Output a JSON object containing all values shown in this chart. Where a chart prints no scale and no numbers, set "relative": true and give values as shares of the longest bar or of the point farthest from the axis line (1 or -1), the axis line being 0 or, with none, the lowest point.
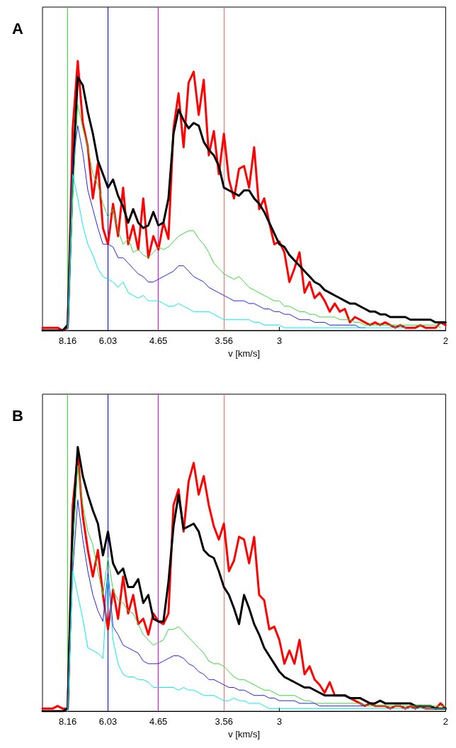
{
  "chart_data": [
    {
      "type": "line",
      "title": "A",
      "xlabel": "v [km/s]",
      "relative": true,
      "marker": "none",
      "grid": false,
      "ref_lines": [
        {
          "axis": "x",
          "value": "8.16",
          "color": "#33dd33"
        },
        {
          "axis": "x",
          "value": "6.03",
          "color": "#0000ff"
        },
        {
          "axis": "x",
          "value": "4.65",
          "color": "#ee00ee"
        },
        {
          "axis": "x",
          "value": "3.56",
          "color": "#ff6666"
        }
      ],
      "categories": [
        null,
        null,
        null,
        null,
        null,
        "8.16",
        null,
        null,
        null,
        null,
        null,
        null,
        null,
        "6.03",
        null,
        null,
        null,
        null,
        null,
        null,
        null,
        null,
        null,
        "4.65",
        null,
        null,
        null,
        null,
        null,
        null,
        null,
        null,
        null,
        null,
        null,
        null,
        "3.56",
        null,
        null,
        null,
        null,
        null,
        null,
        null,
        null,
        null,
        null,
        "3",
        null,
        null,
        null,
        null,
        null,
        null,
        null,
        null,
        null,
        null,
        null,
        null,
        null,
        null,
        null,
        null,
        null,
        null,
        null,
        null,
        null,
        null,
        null,
        null,
        null,
        null,
        null,
        null,
        null,
        null,
        null,
        null,
        "2"
      ],
      "series": [
        {
          "color": "#ff0000",
          "values": [
            0.01,
            0.01,
            0.01,
            0.01,
            0,
            0.01,
            0.75,
            1,
            0.77,
            0.68,
            0.49,
            0.62,
            0.38,
            0.32,
            0.47,
            0.35,
            0.53,
            0.32,
            0.39,
            0.3,
            0.49,
            0.27,
            0.35,
            0.3,
            0.4,
            0.34,
            0.75,
            0.88,
            0.68,
            0.92,
            0.96,
            0.8,
            0.93,
            0.65,
            0.74,
            0.58,
            0.73,
            0.56,
            0.49,
            0.6,
            0.61,
            0.53,
            0.68,
            0.45,
            0.49,
            0.4,
            0.32,
            0.33,
            0.29,
            0.18,
            0.23,
            0.29,
            0.14,
            0.18,
            0.12,
            0.14,
            0.11,
            0.07,
            0.1,
            0.07,
            0.08,
            0.03,
            0.05,
            0.04,
            0.03,
            0.02,
            0.03,
            0.02,
            0.03,
            0.02,
            0.01,
            0.02,
            0.01,
            0.01,
            0.01,
            0.02,
            0.01,
            0.01,
            0.01,
            0.03,
            0.02
          ]
        },
        {
          "color": "#000000",
          "values": [
            0,
            0,
            0,
            0,
            0,
            0.02,
            0.58,
            0.94,
            0.91,
            0.81,
            0.73,
            0.63,
            0.58,
            0.53,
            0.56,
            0.5,
            0.46,
            0.4,
            0.45,
            0.4,
            0.38,
            0.39,
            0.44,
            0.39,
            0.4,
            0.49,
            0.73,
            0.82,
            0.78,
            0.75,
            0.77,
            0.76,
            0.7,
            0.67,
            0.65,
            0.61,
            0.53,
            0.52,
            0.51,
            0.5,
            0.52,
            0.52,
            0.49,
            0.47,
            0.44,
            0.4,
            0.36,
            0.32,
            0.31,
            0.28,
            0.26,
            0.24,
            0.22,
            0.2,
            0.18,
            0.17,
            0.15,
            0.14,
            0.13,
            0.12,
            0.11,
            0.1,
            0.1,
            0.09,
            0.08,
            0.07,
            0.07,
            0.06,
            0.06,
            0.05,
            0.05,
            0.05,
            0.05,
            0.04,
            0.04,
            0.04,
            0.04,
            0.04,
            0.03,
            0.03,
            0.03
          ]
        },
        {
          "color": "#33dd33",
          "values": [
            null,
            null,
            null,
            null,
            null,
            0,
            0.49,
            0.84,
            0.75,
            0.68,
            0.58,
            0.54,
            0.47,
            0.42,
            0.45,
            0.37,
            0.32,
            0.34,
            0.29,
            0.3,
            0.28,
            0.27,
            0.29,
            0.31,
            0.3,
            0.31,
            0.33,
            0.35,
            0.36,
            0.37,
            0.37,
            0.34,
            0.32,
            0.29,
            0.25,
            0.23,
            0.21,
            0.2,
            0.19,
            0.2,
            0.18,
            0.16,
            0.15,
            0.14,
            0.13,
            0.12,
            0.11,
            0.11,
            0.09,
            0.09,
            0.08,
            0.07,
            0.07,
            0.06,
            0.06,
            0.05,
            0.05,
            0.05,
            0.05,
            0.04,
            0.04,
            0.04,
            0.03,
            0.03,
            0.02,
            0.02,
            0.02,
            0.02,
            0.02,
            0.02,
            0.02,
            0.02,
            0.02,
            0.02,
            0.02,
            0.02,
            0.02,
            0.02,
            0.02,
            0.01,
            null
          ]
        },
        {
          "color": "#2222ee",
          "values": [
            null,
            null,
            null,
            null,
            null,
            0,
            0.62,
            0.76,
            0.66,
            0.52,
            0.45,
            0.38,
            0.32,
            0.32,
            0.31,
            0.27,
            0.27,
            0.25,
            0.23,
            0.21,
            0.2,
            0.18,
            0.18,
            0.19,
            0.2,
            0.21,
            0.22,
            0.24,
            0.24,
            0.22,
            0.2,
            0.19,
            0.18,
            0.16,
            0.15,
            0.14,
            0.13,
            0.12,
            0.11,
            0.11,
            0.11,
            0.1,
            0.1,
            0.09,
            0.08,
            0.08,
            0.07,
            0.07,
            0.06,
            0.06,
            0.05,
            0.04,
            0.04,
            0.04,
            0.03,
            0.03,
            0.03,
            0.02,
            0.02,
            0.02,
            0.02,
            0.02,
            0.02,
            0.01,
            0.01,
            null,
            null,
            null,
            null,
            null,
            null,
            null,
            null,
            null,
            null,
            null,
            null,
            null,
            null,
            null,
            null
          ]
        },
        {
          "color": "#00eeee",
          "values": [
            null,
            null,
            null,
            null,
            null,
            0,
            0.58,
            0.49,
            0.39,
            0.32,
            0.28,
            0.23,
            0.2,
            0.19,
            0.18,
            0.16,
            0.18,
            0.14,
            0.13,
            0.12,
            0.13,
            0.11,
            0.11,
            0.11,
            0.1,
            0.09,
            0.09,
            0.1,
            0.09,
            0.08,
            0.07,
            0.07,
            0.07,
            0.07,
            0.06,
            0.05,
            0.04,
            0.04,
            0.04,
            0.04,
            0.04,
            0.04,
            0.03,
            0.03,
            0.02,
            0.02,
            0.02,
            0.02,
            0.01,
            0.01,
            0.01,
            0.01,
            0.01,
            0.01,
            0.01,
            0.01,
            0.01,
            0.01,
            0.01,
            0.01,
            0.01,
            0.01,
            0.01,
            0.01,
            0.01,
            0.01,
            0.01,
            0.01,
            0.01,
            0.01,
            0.01,
            0.01,
            0.01,
            null,
            null,
            null,
            null,
            null,
            null,
            null,
            null
          ]
        }
      ]
    },
    {
      "type": "line",
      "title": "B",
      "xlabel": "v [km/s]",
      "relative": true,
      "marker": "none",
      "grid": false,
      "ref_lines": [
        {
          "axis": "x",
          "value": "8.16",
          "color": "#33dd33"
        },
        {
          "axis": "x",
          "value": "6.03",
          "color": "#0000ff"
        },
        {
          "axis": "x",
          "value": "4.65",
          "color": "#ee00ee"
        },
        {
          "axis": "x",
          "value": "3.56",
          "color": "#ff6666"
        }
      ],
      "categories": [
        null,
        null,
        null,
        null,
        null,
        "8.16",
        null,
        null,
        null,
        null,
        null,
        null,
        null,
        "6.03",
        null,
        null,
        null,
        null,
        null,
        null,
        null,
        null,
        null,
        "4.65",
        null,
        null,
        null,
        null,
        null,
        null,
        null,
        null,
        null,
        null,
        null,
        null,
        "3.56",
        null,
        null,
        null,
        null,
        null,
        null,
        null,
        null,
        null,
        null,
        "3",
        null,
        null,
        null,
        null,
        null,
        null,
        null,
        null,
        null,
        null,
        null,
        null,
        null,
        null,
        null,
        null,
        null,
        null,
        null,
        null,
        null,
        null,
        null,
        null,
        null,
        null,
        null,
        null,
        null,
        null,
        null,
        null,
        "2"
      ],
      "series": [
        {
          "color": "#ff0000",
          "values": [
            0.01,
            0.01,
            0.01,
            0.02,
            0.01,
            0.01,
            0.78,
            0.97,
            0.74,
            0.61,
            0.51,
            0.61,
            0.44,
            0.31,
            0.46,
            0.35,
            0.51,
            0.37,
            0.44,
            0.33,
            0.35,
            0.29,
            0.37,
            0.34,
            0.33,
            0.37,
            0.78,
            0.84,
            0.68,
            0.87,
            0.94,
            0.82,
            0.89,
            0.78,
            0.7,
            0.65,
            0.71,
            0.53,
            0.57,
            0.66,
            0.65,
            0.56,
            0.66,
            0.44,
            0.42,
            0.31,
            0.32,
            0.27,
            0.18,
            0.23,
            0.18,
            0.27,
            0.14,
            0.17,
            0.12,
            0.1,
            0.07,
            0.11,
            0.06,
            0.06,
            0.06,
            0.05,
            0.04,
            0.03,
            0.02,
            0.03,
            0.02,
            0.02,
            0.02,
            0.01,
            0.02,
            0.02,
            0.01,
            0.02,
            0.01,
            0.02,
            0.01,
            0.01,
            0.01,
            0.03,
            0.01
          ]
        },
        {
          "color": "#000000",
          "values": [
            0,
            0,
            0,
            0,
            0,
            0.01,
            0.7,
            1,
            0.89,
            0.82,
            0.76,
            0.71,
            0.59,
            0.68,
            0.56,
            0.52,
            0.54,
            0.47,
            0.47,
            0.5,
            0.41,
            0.44,
            0.35,
            0.34,
            0.34,
            0.49,
            0.7,
            0.82,
            0.69,
            0.7,
            0.71,
            0.68,
            0.61,
            0.59,
            0.58,
            0.53,
            0.47,
            0.44,
            0.39,
            0.33,
            0.44,
            0.39,
            0.33,
            0.29,
            0.24,
            0.21,
            0.18,
            0.15,
            0.13,
            0.12,
            0.11,
            0.1,
            0.09,
            0.09,
            0.08,
            0.07,
            0.06,
            0.06,
            0.06,
            0.06,
            0.06,
            0.05,
            0.05,
            0.05,
            0.04,
            0.03,
            0.03,
            0.04,
            0.03,
            0.03,
            0.03,
            0.03,
            0.03,
            0.03,
            0.02,
            0.02,
            0.02,
            0.02,
            0.01,
            0.01,
            0.01
          ]
        },
        {
          "color": "#33dd33",
          "values": [
            null,
            null,
            null,
            null,
            null,
            0,
            0.59,
            0.93,
            0.78,
            0.68,
            0.63,
            0.53,
            0.44,
            0.58,
            0.46,
            0.42,
            0.41,
            0.38,
            0.37,
            0.33,
            0.29,
            0.27,
            0.25,
            0.26,
            0.27,
            0.31,
            0.31,
            0.32,
            0.3,
            0.28,
            0.26,
            0.24,
            0.22,
            0.19,
            0.18,
            0.18,
            0.17,
            0.15,
            0.13,
            0.12,
            0.12,
            0.11,
            0.1,
            0.09,
            0.08,
            0.08,
            0.07,
            0.06,
            0.06,
            0.06,
            0.06,
            0.05,
            0.04,
            0.04,
            0.03,
            0.03,
            0.03,
            0.03,
            0.03,
            0.03,
            0.03,
            0.03,
            0.03,
            0.03,
            0.02,
            0.02,
            0.02,
            0.02,
            0.02,
            0.02,
            0.02,
            0.02,
            0.02,
            0.02,
            0.02,
            0.02,
            0.02,
            0.02,
            0.02,
            0.02,
            0.02
          ]
        },
        {
          "color": "#2222ee",
          "values": [
            null,
            null,
            null,
            null,
            null,
            0,
            0.53,
            0.8,
            0.65,
            0.53,
            0.44,
            0.38,
            0.34,
            0.53,
            0.32,
            0.29,
            0.25,
            0.24,
            0.23,
            0.22,
            0.19,
            0.18,
            0.18,
            0.18,
            0.19,
            0.2,
            0.21,
            0.21,
            0.2,
            0.18,
            0.17,
            0.15,
            0.14,
            0.12,
            0.12,
            0.11,
            0.1,
            0.09,
            0.09,
            0.08,
            0.08,
            0.07,
            0.06,
            0.06,
            0.06,
            0.05,
            0.05,
            0.04,
            0.04,
            0.04,
            0.04,
            0.03,
            0.03,
            0.03,
            0.03,
            0.02,
            0.02,
            0.02,
            0.02,
            0.02,
            0.02,
            0.02,
            0.02,
            0.02,
            0.02,
            null,
            null,
            null,
            null,
            null,
            null,
            null,
            null,
            null,
            null,
            null,
            null,
            null,
            null,
            null,
            null
          ]
        },
        {
          "color": "#00eeee",
          "values": [
            null,
            null,
            null,
            null,
            null,
            0,
            0.53,
            0.44,
            0.35,
            0.24,
            0.23,
            0.22,
            0.2,
            0.51,
            0.27,
            0.18,
            0.14,
            0.13,
            0.13,
            0.12,
            0.12,
            0.11,
            0.09,
            0.09,
            0.09,
            0.09,
            0.09,
            0.08,
            0.09,
            0.08,
            0.08,
            0.07,
            0.06,
            0.06,
            0.06,
            0.05,
            0.04,
            0.04,
            0.05,
            0.04,
            0.04,
            0.03,
            0.03,
            0.03,
            0.02,
            0.01,
            0.01,
            0.01,
            0.01,
            0.01,
            0.01,
            0.01,
            0.01,
            0.01,
            0.01,
            0.01,
            0.01,
            0.01,
            0.01,
            0.01,
            0.01,
            0.01,
            0.01,
            0.01,
            0.01,
            0.01,
            0.01,
            0.01,
            0.01,
            0.01,
            0.01,
            0.01,
            0.01,
            0.01,
            0.01,
            0.01,
            0.01,
            0.01,
            0.01,
            0.01,
            0.01
          ]
        }
      ]
    }
  ]
}
